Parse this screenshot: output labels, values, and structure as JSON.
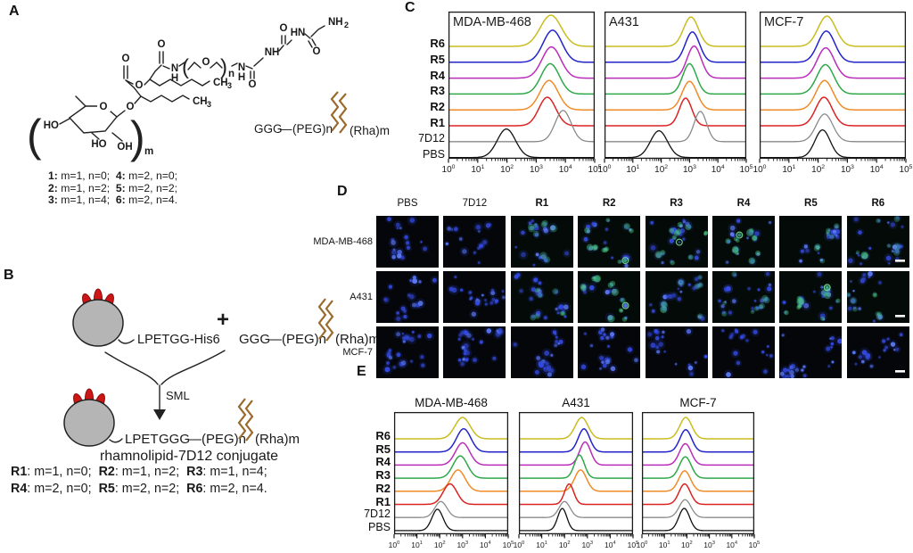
{
  "panel_a": {
    "label": "A",
    "atoms": {
      "o": "O",
      "N": "N",
      "H": "H",
      "NH": "NH",
      "HN": "HN",
      "NH2_base": "NH",
      "sub2": "2",
      "CH": "CH",
      "sub3": "3",
      "HO": "HO",
      "OH": "OH",
      "n_sub": "n",
      "m_sub": "m",
      "paren_open": "(",
      "paren_close": ")"
    },
    "linker": {
      "ggg": "GGG",
      "dash": "—",
      "peg": "(PEG)n",
      "rha": "(Rha)m"
    },
    "legend": [
      [
        {
          "b": 1,
          "s": "1:"
        },
        {
          "b": 0,
          "s": " m=1, n=0;  "
        },
        {
          "b": 1,
          "s": "4:"
        },
        {
          "b": 0,
          "s": " m=2, n=0;"
        }
      ],
      [
        {
          "b": 1,
          "s": "2:"
        },
        {
          "b": 0,
          "s": " m=1, n=2;  "
        },
        {
          "b": 1,
          "s": "5:"
        },
        {
          "b": 0,
          "s": " m=2, n=2;"
        }
      ],
      [
        {
          "b": 1,
          "s": "3:"
        },
        {
          "b": 0,
          "s": " m=1, n=4;  "
        },
        {
          "b": 1,
          "s": "6:"
        },
        {
          "b": 0,
          "s": " m=2, n=4."
        }
      ]
    ]
  },
  "panel_b": {
    "label": "B",
    "reactant1_label": "LPETGG-His6",
    "plus": "+",
    "ggg": "GGG",
    "dash": "—",
    "peg": "(PEG)n",
    "rha": "(Rha)m",
    "lpet": "LPET",
    "enzyme": "SML",
    "caption": "rhamnolipid-7D12 conjugate",
    "definitions": [
      [
        {
          "b": 1,
          "s": "R1"
        },
        {
          "b": 0,
          "s": ": m=1, n=0;  "
        },
        {
          "b": 1,
          "s": "R2"
        },
        {
          "b": 0,
          "s": ": m=1, n=2;  "
        },
        {
          "b": 1,
          "s": "R3"
        },
        {
          "b": 0,
          "s": ": m=1, n=4;"
        }
      ],
      [
        {
          "b": 1,
          "s": "R4"
        },
        {
          "b": 0,
          "s": ": m=2, n=0;  "
        },
        {
          "b": 1,
          "s": "R5"
        },
        {
          "b": 0,
          "s": ": m=2, n=2;  "
        },
        {
          "b": 1,
          "s": "R6"
        },
        {
          "b": 0,
          "s": ": m=2, n=4."
        }
      ]
    ],
    "colors": {
      "ggg_red": "#d42421",
      "zigzag_brown": "#9a6a2c",
      "body_gray": "#b5b5b5",
      "loop_red": "#cc1616"
    }
  },
  "panel_c": {
    "label": "C"
  },
  "panel_d": {
    "label": "D",
    "columns": [
      "PBS",
      "7D12",
      "R1",
      "R2",
      "R3",
      "R4",
      "R5",
      "R6"
    ],
    "rows": [
      "MDA-MB-468",
      "A431",
      "MCF-7"
    ],
    "green_levels": [
      [
        0,
        0,
        1,
        2,
        2,
        2,
        1,
        1
      ],
      [
        0,
        0,
        1,
        2,
        1,
        1,
        2,
        1
      ],
      [
        0,
        0,
        0,
        0,
        0,
        0,
        0,
        0
      ]
    ],
    "colors": {
      "nucleus_blue": "#3349e0",
      "stain_green": "#46cc6d",
      "background": "#04060a",
      "scale_bar": "#ffffff"
    }
  },
  "panel_e": {
    "label": "E"
  },
  "chart_data": [
    {
      "id": "C",
      "type": "area",
      "subtype": "flow-cytometry-ridgeline-histogram",
      "x_axis": {
        "base": "10",
        "exponents": [
          0,
          1,
          2,
          3,
          4,
          5
        ],
        "scale": "log",
        "range_log": [
          0,
          5
        ]
      },
      "traces": [
        "R6",
        "R5",
        "R4",
        "R3",
        "R2",
        "R1",
        "7D12",
        "PBS"
      ],
      "colors": {
        "R6": "#c9bc1f",
        "R5": "#2323cc",
        "R4": "#bb2cbb",
        "R3": "#2fa849",
        "R2": "#ef8c28",
        "R1": "#dd2222",
        "7D12": "#8a8a8a",
        "PBS": "#111111"
      },
      "panels": [
        {
          "title": "MDA-MB-468",
          "peaks": {
            "R6": [
              3.5,
              35,
              0.36
            ],
            "R5": [
              3.56,
              36,
              0.32
            ],
            "R4": [
              3.52,
              35,
              0.32
            ],
            "R3": [
              3.48,
              34,
              0.31
            ],
            "R2": [
              3.44,
              33,
              0.31
            ],
            "R1": [
              3.38,
              32,
              0.29
            ],
            "7D12": [
              3.92,
              35,
              0.27
            ],
            "PBS": [
              1.98,
              32,
              0.31
            ]
          }
        },
        {
          "title": "A431",
          "peaks": {
            "R6": [
              3.05,
              33,
              0.26
            ],
            "R5": [
              3.1,
              34,
              0.25
            ],
            "R4": [
              3.16,
              36,
              0.25
            ],
            "R3": [
              3.0,
              34,
              0.24
            ],
            "R2": [
              3.0,
              32,
              0.26
            ],
            "R1": [
              2.86,
              31,
              0.22
            ],
            "7D12": [
              3.38,
              34,
              0.22
            ],
            "PBS": [
              1.92,
              30,
              0.3
            ]
          }
        },
        {
          "title": "MCF-7",
          "peaks": {
            "R6": [
              2.3,
              34,
              0.3
            ],
            "R5": [
              2.28,
              35,
              0.29
            ],
            "R4": [
              2.26,
              34,
              0.29
            ],
            "R3": [
              2.25,
              33,
              0.29
            ],
            "R2": [
              2.22,
              33,
              0.29
            ],
            "R1": [
              2.2,
              32,
              0.28
            ],
            "7D12": [
              2.22,
              31,
              0.28
            ],
            "PBS": [
              2.15,
              31,
              0.26
            ]
          }
        }
      ],
      "layout": {
        "frames": [
          [
            503,
            13,
            164,
            165
          ],
          [
            678,
            13,
            159,
            165
          ],
          [
            852,
            13,
            164,
            165
          ]
        ],
        "first_baseline": 39,
        "spacing": 17.8,
        "title_inside": true,
        "tick_font": 10
      }
    },
    {
      "id": "E",
      "type": "area",
      "subtype": "flow-cytometry-ridgeline-histogram",
      "x_axis": {
        "base": "10",
        "exponents": [
          0,
          1,
          2,
          3,
          4,
          5
        ],
        "scale": "log",
        "range_log": [
          0,
          5
        ]
      },
      "traces": [
        "R6",
        "R5",
        "R4",
        "R3",
        "R2",
        "R1",
        "7D12",
        "PBS"
      ],
      "colors": {
        "R6": "#c9bc1f",
        "R5": "#2323cc",
        "R4": "#bb2cbb",
        "R3": "#2fa849",
        "R2": "#ef8c28",
        "R1": "#dd2222",
        "7D12": "#8a8a8a",
        "PBS": "#111111"
      },
      "panels": [
        {
          "title": "MDA-MB-468",
          "peaks": {
            "R6": [
              3.0,
              24,
              0.33
            ],
            "R5": [
              3.05,
              26,
              0.31
            ],
            "R4": [
              3.0,
              25,
              0.31
            ],
            "R3": [
              2.9,
              25,
              0.31
            ],
            "R2": [
              2.8,
              24,
              0.31
            ],
            "R1": [
              2.45,
              23,
              0.3
            ],
            "7D12": [
              2.05,
              18,
              0.26
            ],
            "PBS": [
              1.9,
              24,
              0.24
            ]
          }
        },
        {
          "title": "A431",
          "peaks": {
            "R6": [
              2.75,
              24,
              0.28
            ],
            "R5": [
              2.85,
              26,
              0.25
            ],
            "R4": [
              2.9,
              26,
              0.24
            ],
            "R3": [
              2.65,
              26,
              0.22
            ],
            "R2": [
              2.7,
              24,
              0.26
            ],
            "R1": [
              2.2,
              23,
              0.2
            ],
            "7D12": [
              2.0,
              18,
              0.24
            ],
            "PBS": [
              1.9,
              25,
              0.2
            ]
          }
        },
        {
          "title": "MCF-7",
          "peaks": {
            "R6": [
              1.95,
              24,
              0.27
            ],
            "R5": [
              1.95,
              25,
              0.26
            ],
            "R4": [
              1.93,
              24,
              0.26
            ],
            "R3": [
              1.93,
              24,
              0.26
            ],
            "R2": [
              1.9,
              23,
              0.26
            ],
            "R1": [
              1.9,
              23,
              0.25
            ],
            "7D12": [
              1.92,
              20,
              0.26
            ],
            "PBS": [
              1.88,
              25,
              0.24
            ]
          }
        }
      ],
      "layout": {
        "frames": [
          [
            442,
            462,
            128,
            137
          ],
          [
            582,
            462,
            128,
            137
          ],
          [
            720,
            462,
            126,
            137
          ]
        ],
        "first_baseline": 30,
        "spacing": 14.7,
        "title_inside": false,
        "tick_font": 8.5
      }
    }
  ]
}
